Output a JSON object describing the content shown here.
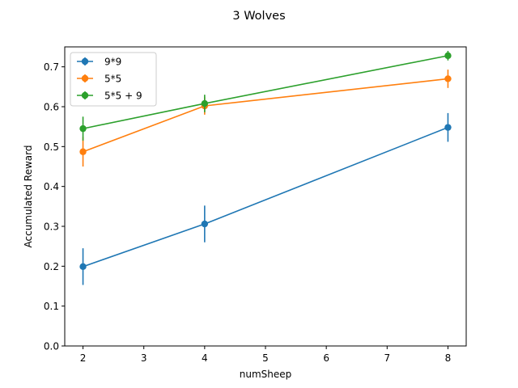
{
  "chart_data": {
    "type": "line",
    "title": "3 Wolves",
    "xlabel": "numSheep",
    "ylabel": "Accumulated Reward",
    "xlim": [
      1.7,
      8.3
    ],
    "ylim": [
      0.0,
      0.75
    ],
    "xticks": [
      2,
      3,
      4,
      5,
      6,
      7,
      8
    ],
    "yticks": [
      0.0,
      0.1,
      0.2,
      0.3,
      0.4,
      0.5,
      0.6,
      0.7
    ],
    "ytick_labels": [
      "0.0",
      "0.1",
      "0.2",
      "0.3",
      "0.4",
      "0.5",
      "0.6",
      "0.7"
    ],
    "grid": false,
    "legend": "top-left",
    "x": [
      2,
      4,
      8
    ],
    "series": [
      {
        "name": "9*9",
        "color": "#1f77b4",
        "values": [
          0.199,
          0.306,
          0.548
        ],
        "errors": [
          0.046,
          0.046,
          0.036
        ]
      },
      {
        "name": "5*5",
        "color": "#ff7f0e",
        "values": [
          0.487,
          0.602,
          0.67
        ],
        "errors": [
          0.037,
          0.022,
          0.023
        ]
      },
      {
        "name": "5*5 + 9",
        "color": "#2ca02c",
        "values": [
          0.545,
          0.608,
          0.728
        ],
        "errors": [
          0.03,
          0.022,
          0.012
        ]
      }
    ]
  }
}
